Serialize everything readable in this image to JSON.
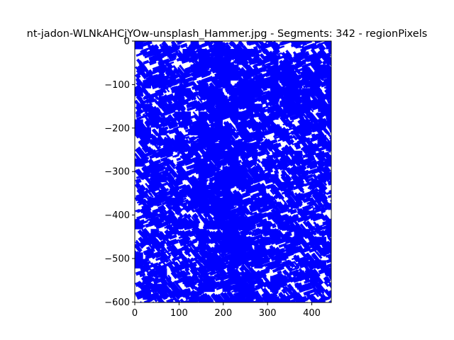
{
  "chart_data": {
    "type": "line",
    "title": "nt-jadon-WLNkAHCjYOw-unsplash_Hammer.jpg - Segments: 342 - regionPixels",
    "xlabel": "",
    "ylabel": "",
    "xlim": [
      0,
      444
    ],
    "ylim": [
      -601,
      0
    ],
    "x_ticks": [
      0,
      100,
      200,
      300,
      400
    ],
    "y_ticks": [
      0,
      -100,
      -200,
      -300,
      -400,
      -500,
      -600
    ],
    "x_tick_labels": [
      "0",
      "100",
      "200",
      "300",
      "400"
    ],
    "y_tick_labels": [
      "0",
      "−100",
      "−200",
      "−300",
      "−400",
      "−500",
      "−600"
    ],
    "grid": false,
    "legend": "none",
    "segment_count": 342,
    "colors": {
      "segments": "#0000ff",
      "axes": "#000000",
      "background": "#ffffff"
    }
  }
}
